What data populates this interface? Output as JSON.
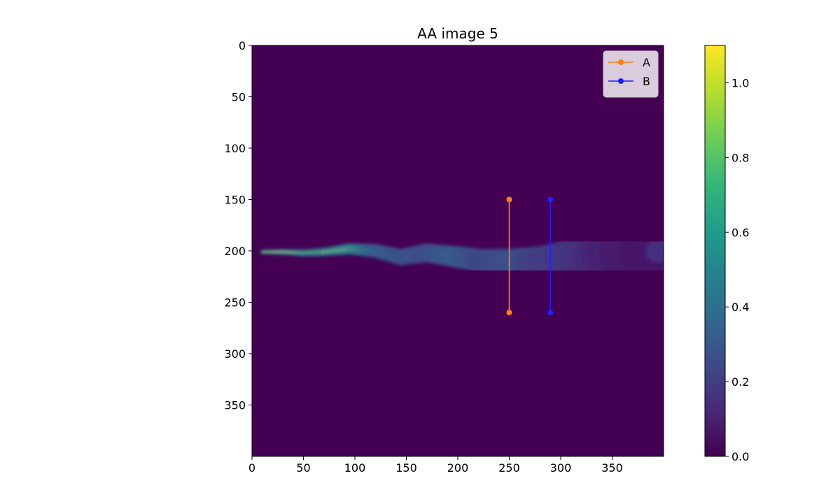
{
  "chart_data": {
    "type": "heatmap",
    "title": "AA image 5",
    "xlabel": "",
    "ylabel": "",
    "xlim": [
      0,
      400
    ],
    "ylim": [
      400,
      0
    ],
    "x_ticks": [
      0,
      50,
      100,
      150,
      200,
      250,
      300,
      350
    ],
    "y_ticks": [
      0,
      50,
      100,
      150,
      200,
      250,
      300,
      350
    ],
    "colormap": "viridis",
    "colorbar": {
      "min": 0.0,
      "max": 1.1,
      "ticks": [
        "0.0",
        "0.2",
        "0.4",
        "0.6",
        "0.8",
        "1.0"
      ]
    },
    "background_value": 0.0,
    "plume_centerline": [
      {
        "x": 10,
        "y": 201,
        "value": 0.95,
        "halfwidth": 1.5
      },
      {
        "x": 30,
        "y": 201,
        "value": 1.05,
        "halfwidth": 2
      },
      {
        "x": 50,
        "y": 202,
        "value": 0.9,
        "halfwidth": 2.5
      },
      {
        "x": 70,
        "y": 201,
        "value": 0.95,
        "halfwidth": 3
      },
      {
        "x": 95,
        "y": 198,
        "value": 1.05,
        "halfwidth": 4
      },
      {
        "x": 120,
        "y": 200,
        "value": 0.7,
        "halfwidth": 5
      },
      {
        "x": 145,
        "y": 206,
        "value": 0.6,
        "halfwidth": 6
      },
      {
        "x": 170,
        "y": 202,
        "value": 0.55,
        "halfwidth": 7
      },
      {
        "x": 200,
        "y": 206,
        "value": 0.7,
        "halfwidth": 8
      },
      {
        "x": 225,
        "y": 210,
        "value": 0.5,
        "halfwidth": 9
      },
      {
        "x": 255,
        "y": 211,
        "value": 0.6,
        "halfwidth": 10
      },
      {
        "x": 285,
        "y": 212,
        "value": 0.45,
        "halfwidth": 13
      },
      {
        "x": 320,
        "y": 209,
        "value": 0.4,
        "halfwidth": 17
      },
      {
        "x": 360,
        "y": 202,
        "value": 0.22,
        "halfwidth": 22
      },
      {
        "x": 400,
        "y": 200,
        "value": 0.15,
        "halfwidth": 24
      }
    ],
    "series": [
      {
        "name": "A",
        "color": "#ff7f0e",
        "x": [
          250,
          250
        ],
        "y": [
          150,
          260
        ]
      },
      {
        "name": "B",
        "color": "#1f1fff",
        "x": [
          290,
          290
        ],
        "y": [
          150,
          260
        ]
      }
    ],
    "legend": {
      "position": "top-right"
    },
    "grid": false
  }
}
